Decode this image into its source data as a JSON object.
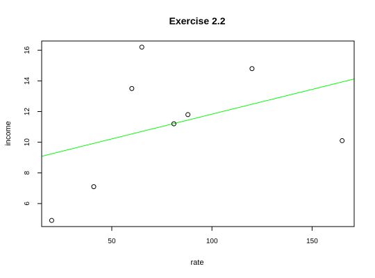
{
  "chart_data": {
    "type": "scatter",
    "title": "Exercise 2.2",
    "xlabel": "rate",
    "ylabel": "income",
    "xlim": [
      15,
      171
    ],
    "ylim": [
      4.5,
      16.6
    ],
    "x_ticks": [
      50,
      100,
      150
    ],
    "y_ticks": [
      6,
      8,
      10,
      12,
      14,
      16
    ],
    "grid": false,
    "series": [
      {
        "marker": "open-circle",
        "color": "#000000",
        "points": [
          {
            "x": 20,
            "y": 4.9
          },
          {
            "x": 41,
            "y": 7.1
          },
          {
            "x": 60,
            "y": 13.5
          },
          {
            "x": 65,
            "y": 16.2
          },
          {
            "x": 81,
            "y": 11.2
          },
          {
            "x": 88,
            "y": 11.8
          },
          {
            "x": 120,
            "y": 14.8
          },
          {
            "x": 165,
            "y": 10.1
          }
        ]
      }
    ],
    "fit_line": {
      "color": "#00ff00",
      "intercept": 8.6,
      "slope": 0.0323
    }
  }
}
